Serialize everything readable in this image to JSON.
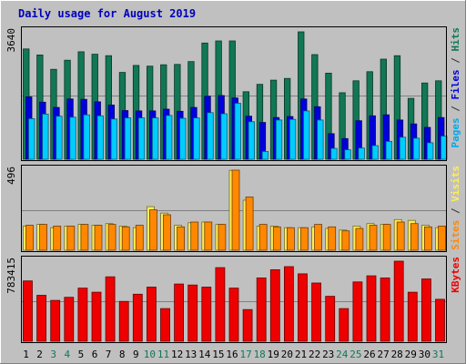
{
  "chart_data": {
    "type": "bar",
    "title": "Daily usage for August 2019",
    "categories": [
      "1",
      "2",
      "3",
      "4",
      "5",
      "6",
      "7",
      "8",
      "9",
      "10",
      "11",
      "12",
      "13",
      "14",
      "15",
      "16",
      "17",
      "18",
      "19",
      "20",
      "21",
      "22",
      "23",
      "24",
      "25",
      "26",
      "27",
      "28",
      "29",
      "30",
      "31"
    ],
    "weekend_days": [
      "3",
      "4",
      "10",
      "11",
      "17",
      "18",
      "24",
      "25",
      "31"
    ],
    "panels": [
      {
        "id": "top",
        "max_label": "3640",
        "ylim": [
          0,
          3640
        ],
        "right_label_parts": [
          {
            "text": "Pages",
            "color": "#00aaee"
          },
          {
            "text": " / ",
            "color": "#333333"
          },
          {
            "text": "Files",
            "color": "#0000dd"
          },
          {
            "text": " / ",
            "color": "#333333"
          },
          {
            "text": "Hits",
            "color": "#117755"
          }
        ],
        "series": [
          {
            "name": "Hits",
            "color": "#117755",
            "values": [
              3150,
              2980,
              2570,
              2830,
              3070,
              3000,
              2960,
              2480,
              2680,
              2660,
              2700,
              2710,
              2790,
              3320,
              3380,
              3380,
              1930,
              2140,
              2260,
              2310,
              3640,
              2990,
              2460,
              1900,
              2240,
              2500,
              2860,
              2960,
              1740,
              2180,
              2240
            ]
          },
          {
            "name": "Files",
            "color": "#0000dd",
            "values": [
              1780,
              1630,
              1480,
              1720,
              1710,
              1640,
              1550,
              1390,
              1380,
              1380,
              1430,
              1370,
              1480,
              1800,
              1820,
              1750,
              1230,
              1050,
              1190,
              1220,
              1720,
              1500,
              730,
              590,
              1100,
              1240,
              1270,
              1120,
              1010,
              910,
              1190
            ]
          },
          {
            "name": "Pages",
            "color": "#00ccff",
            "values": [
              1160,
              1290,
              1230,
              1200,
              1270,
              1240,
              1150,
              1180,
              1180,
              1180,
              1250,
              1170,
              1180,
              1330,
              1300,
              1600,
              1070,
              220,
              1120,
              1140,
              1380,
              1120,
              310,
              270,
              320,
              390,
              510,
              630,
              600,
              470,
              660
            ]
          }
        ]
      },
      {
        "id": "mid",
        "max_label": "496",
        "ylim": [
          0,
          496
        ],
        "right_label_parts": [
          {
            "text": "Sites",
            "color": "#ff8800"
          },
          {
            "text": " / ",
            "color": "#333333"
          },
          {
            "text": "Visits",
            "color": "#ffee55"
          }
        ],
        "series": [
          {
            "name": "Visits",
            "color": "#ffee55",
            "values": [
              150,
              160,
              140,
              150,
              160,
              155,
              165,
              150,
              140,
              270,
              230,
              155,
              170,
              175,
              160,
              495,
              310,
              150,
              150,
              140,
              140,
              145,
              135,
              125,
              150,
              165,
              160,
              190,
              185,
              155,
              140
            ]
          },
          {
            "name": "Sites",
            "color": "#ff8800",
            "values": [
              155,
              160,
              150,
              150,
              160,
              155,
              160,
              145,
              155,
              250,
              220,
              145,
              175,
              175,
              160,
              496,
              330,
              160,
              145,
              140,
              140,
              160,
              145,
              120,
              135,
              155,
              160,
              175,
              165,
              145,
              150
            ]
          }
        ]
      },
      {
        "id": "bottom",
        "max_label": "783415",
        "ylim": [
          0,
          783415
        ],
        "right_label_parts": [
          {
            "text": "KBytes",
            "color": "#ee0000"
          }
        ],
        "series": [
          {
            "name": "KBytes",
            "color": "#ee0000",
            "values": [
              590000,
              450000,
              400000,
              430000,
              520000,
              480000,
              630000,
              390000,
              460000,
              530000,
              320000,
              560000,
              550000,
              530000,
              720000,
              520000,
              310000,
              620000,
              700000,
              730000,
              660000,
              570000,
              440000,
              320000,
              580000,
              640000,
              620000,
              783415,
              480000,
              610000,
              410000
            ]
          }
        ]
      }
    ]
  }
}
